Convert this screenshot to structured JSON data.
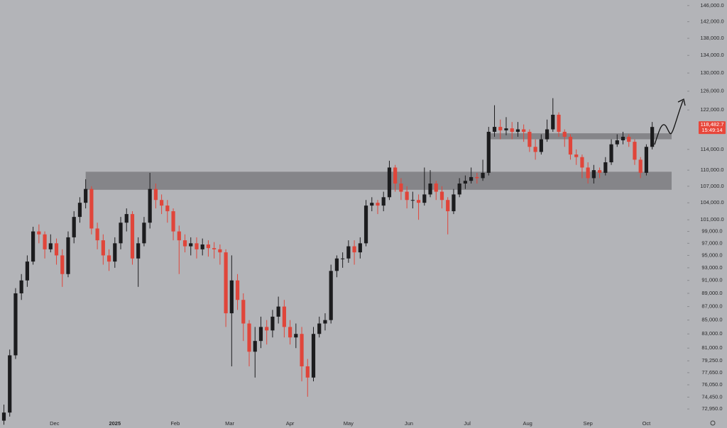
{
  "chart_data": {
    "type": "candlestick",
    "log_scale": true,
    "ylim": [
      70600,
      147400
    ],
    "xlim": [
      -2,
      351
    ],
    "up_color": "#1c1c1e",
    "down_color": "#e0453a",
    "background": "#b3b4b8",
    "yticks": [
      {
        "value": 146000,
        "label": "146,000.0"
      },
      {
        "value": 142000,
        "label": "142,000.0"
      },
      {
        "value": 138000,
        "label": "138,000.0"
      },
      {
        "value": 134000,
        "label": "134,000.0"
      },
      {
        "value": 130000,
        "label": "130,000.0"
      },
      {
        "value": 126000,
        "label": "126,000.0"
      },
      {
        "value": 122000,
        "label": "122,000.0"
      },
      {
        "value": 114000,
        "label": "114,000.0"
      },
      {
        "value": 110000,
        "label": "110,000.0"
      },
      {
        "value": 107000,
        "label": "107,000.0"
      },
      {
        "value": 104000,
        "label": "104,000.0"
      },
      {
        "value": 101000,
        "label": "101,000.0"
      },
      {
        "value": 99000,
        "label": "99,000.0"
      },
      {
        "value": 97000,
        "label": "97,000.0"
      },
      {
        "value": 95000,
        "label": "95,000.0"
      },
      {
        "value": 93000,
        "label": "93,000.0"
      },
      {
        "value": 91000,
        "label": "91,000.0"
      },
      {
        "value": 89000,
        "label": "89,000.0"
      },
      {
        "value": 87000,
        "label": "87,000.0"
      },
      {
        "value": 85000,
        "label": "85,000.0"
      },
      {
        "value": 83000,
        "label": "83,000.0"
      },
      {
        "value": 81000,
        "label": "81,000.0"
      },
      {
        "value": 79250,
        "label": "79,250.0"
      },
      {
        "value": 77650,
        "label": "77,650.0"
      },
      {
        "value": 76050,
        "label": "76,050.0"
      },
      {
        "value": 74450,
        "label": "74,450.0"
      },
      {
        "value": 72950,
        "label": "72,950.0"
      }
    ],
    "xticks": [
      {
        "value": 26,
        "label": "Dec"
      },
      {
        "value": 57,
        "label": "2025"
      },
      {
        "value": 88,
        "label": "Feb"
      },
      {
        "value": 116,
        "label": "Mar"
      },
      {
        "value": 147,
        "label": "Apr"
      },
      {
        "value": 177,
        "label": "May"
      },
      {
        "value": 208,
        "label": "Jun"
      },
      {
        "value": 238,
        "label": "Jul"
      },
      {
        "value": 269,
        "label": "Aug"
      },
      {
        "value": 300,
        "label": "Sep"
      },
      {
        "value": 330,
        "label": "Oct"
      }
    ],
    "x": [
      0,
      3,
      6,
      9,
      12,
      15,
      18,
      21,
      24,
      27,
      30,
      33,
      36,
      39,
      42,
      45,
      48,
      51,
      54,
      57,
      60,
      63,
      66,
      69,
      72,
      75,
      78,
      81,
      84,
      87,
      90,
      93,
      96,
      99,
      102,
      105,
      108,
      111,
      114,
      117,
      120,
      123,
      126,
      129,
      132,
      135,
      138,
      141,
      144,
      147,
      150,
      153,
      156,
      159,
      162,
      165,
      168,
      171,
      174,
      177,
      180,
      183,
      186,
      189,
      192,
      195,
      198,
      201,
      204,
      207,
      210,
      213,
      216,
      219,
      222,
      225,
      228,
      231,
      234,
      237,
      240,
      243,
      246,
      249,
      252,
      255,
      258,
      261,
      264,
      267,
      270,
      273,
      276,
      279,
      282,
      285,
      288,
      291,
      294,
      297,
      300,
      303,
      306,
      309,
      312,
      315,
      318,
      321,
      324,
      327,
      330,
      333
    ],
    "open": [
      71500,
      72500,
      80000,
      89000,
      91000,
      94000,
      99000,
      98500,
      96000,
      97000,
      95000,
      92000,
      98000,
      101500,
      104000,
      106500,
      99500,
      97500,
      95000,
      94000,
      97000,
      100500,
      102000,
      94500,
      97000,
      100500,
      106500,
      104500,
      103500,
      102500,
      99000,
      97500,
      96500,
      97000,
      96000,
      96800,
      96200,
      96000,
      95500,
      86000,
      91000,
      88000,
      84500,
      80500,
      82000,
      84000,
      83500,
      85500,
      87000,
      84000,
      82500,
      83000,
      78500,
      77000,
      83000,
      84500,
      85000,
      92500,
      94500,
      94500,
      96500,
      95500,
      97000,
      103500,
      104000,
      103500,
      105000,
      110500,
      107500,
      106000,
      104500,
      104500,
      104000,
      105500,
      107500,
      106000,
      104500,
      102500,
      105500,
      107500,
      108000,
      108700,
      108500,
      109500,
      117500,
      118500,
      117800,
      118200,
      117500,
      118000,
      117500,
      114500,
      113500,
      116000,
      118000,
      121000,
      117500,
      116500,
      113000,
      112500,
      110500,
      108500,
      110000,
      109500,
      111500,
      115000,
      115800,
      116500,
      115500,
      112000,
      109500,
      114500
    ],
    "high": [
      73500,
      80800,
      89800,
      92000,
      95000,
      99800,
      100200,
      99000,
      98500,
      97800,
      96000,
      99000,
      102500,
      105000,
      108300,
      107000,
      100500,
      98500,
      96000,
      98000,
      101500,
      103000,
      102500,
      98000,
      101500,
      109500,
      107500,
      105500,
      104500,
      103000,
      100000,
      98500,
      98000,
      98000,
      97800,
      97500,
      97200,
      96800,
      96000,
      95000,
      92000,
      89000,
      85000,
      84000,
      85500,
      85000,
      86500,
      88500,
      88000,
      85000,
      84500,
      84000,
      79500,
      84000,
      85500,
      86000,
      93500,
      95000,
      95500,
      97500,
      97500,
      98000,
      104500,
      105000,
      104500,
      106000,
      111800,
      111000,
      108500,
      107000,
      106000,
      105500,
      110500,
      110000,
      108000,
      107000,
      105000,
      106500,
      108500,
      109000,
      110500,
      109500,
      112000,
      118500,
      123000,
      120000,
      120500,
      119500,
      119500,
      119000,
      118000,
      116000,
      117000,
      120000,
      124500,
      121500,
      118000,
      117000,
      114000,
      113000,
      111500,
      111000,
      110500,
      112500,
      116000,
      117000,
      117500,
      117000,
      116000,
      112500,
      115000,
      119500
    ],
    "low": [
      71000,
      72000,
      79500,
      88000,
      90000,
      93500,
      97000,
      94500,
      95500,
      93500,
      90000,
      91500,
      97000,
      100500,
      103000,
      98500,
      96000,
      93500,
      92500,
      93000,
      96000,
      99000,
      93500,
      90000,
      96500,
      99500,
      103000,
      102000,
      100500,
      97500,
      92000,
      95500,
      95000,
      94500,
      95000,
      94800,
      94500,
      93500,
      84000,
      78500,
      86500,
      82000,
      78500,
      77000,
      81000,
      81500,
      82500,
      84500,
      82500,
      81500,
      81000,
      76500,
      74500,
      76500,
      82500,
      83500,
      84500,
      91500,
      93000,
      93800,
      93500,
      94500,
      96500,
      102500,
      102000,
      102500,
      104500,
      106000,
      104500,
      103000,
      103000,
      101000,
      103500,
      105000,
      104500,
      103000,
      98500,
      102000,
      105000,
      106500,
      107500,
      107500,
      108000,
      109000,
      116500,
      116000,
      116800,
      116000,
      116500,
      115500,
      113500,
      112000,
      113000,
      115500,
      117500,
      116500,
      114500,
      112000,
      111000,
      108500,
      107500,
      107500,
      108500,
      109000,
      111000,
      114500,
      115000,
      114500,
      111000,
      108500,
      109000,
      114000
    ],
    "close": [
      72500,
      80000,
      89000,
      91000,
      94000,
      99000,
      98500,
      96000,
      97000,
      95000,
      92000,
      98000,
      101500,
      104000,
      106500,
      99500,
      97500,
      95000,
      94000,
      97000,
      100500,
      102000,
      94500,
      97000,
      100500,
      106500,
      104500,
      103500,
      102500,
      99000,
      97500,
      96500,
      97000,
      96000,
      96800,
      96200,
      96000,
      95500,
      86000,
      91000,
      88000,
      84500,
      80500,
      82000,
      84000,
      83500,
      85500,
      87000,
      84000,
      82500,
      83000,
      78500,
      77000,
      83000,
      84500,
      85000,
      92500,
      94500,
      94500,
      96500,
      95500,
      97000,
      103500,
      104000,
      103500,
      105000,
      110500,
      107500,
      106000,
      104500,
      104500,
      104000,
      105500,
      107500,
      106000,
      104500,
      102500,
      105500,
      107500,
      108000,
      108700,
      108500,
      109500,
      117500,
      118500,
      117800,
      118200,
      117500,
      118000,
      117500,
      114500,
      113500,
      116000,
      118000,
      121000,
      117500,
      116500,
      113000,
      112500,
      110500,
      108500,
      110000,
      109500,
      111500,
      115000,
      115800,
      116500,
      115500,
      112000,
      109500,
      114500,
      118482.7
    ],
    "zones": [
      {
        "x_start": 42,
        "low": 106350,
        "high": 109700,
        "color": "#7c7d80"
      },
      {
        "x_start": 249,
        "low": 116000,
        "high": 117200,
        "color": "#7c7d80"
      }
    ],
    "last_price_label": "118,482.7",
    "countdown": "15:49:14",
    "price_label_color": "#e8463a"
  }
}
